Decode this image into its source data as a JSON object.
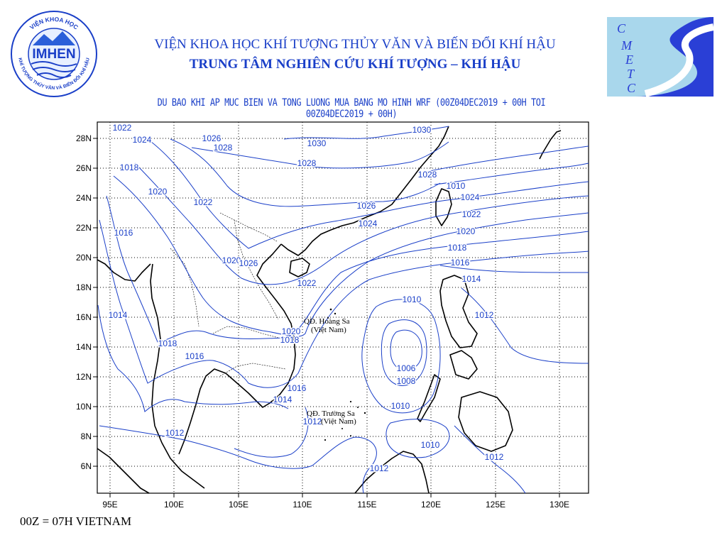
{
  "header": {
    "line1": "VIỆN KHOA HỌC KHÍ TƯỢNG THỦY VĂN VÀ BIẾN ĐỔI KHÍ HẬU",
    "line2": "TRUNG TÂM NGHIÊN CỨU KHÍ TƯỢNG – KHÍ HẬU"
  },
  "logo_left": {
    "name": "IMHEN",
    "ring_top": "VIỆN KHOA HỌC",
    "ring_bottom": "KHÍ TƯỢNG THỦY VĂN VÀ BIẾN ĐỔI KHÍ HẬU"
  },
  "logo_right": {
    "letters": [
      "C",
      "M",
      "E",
      "T",
      "C"
    ]
  },
  "map": {
    "caption": "DU BAO KHI AP MUC BIEN VA TONG LUONG MUA BANG MO HINH WRF (00Z04DEC2019 + 00H TOI 00Z04DEC2019 + 00H)",
    "lat_labels": [
      "28N",
      "26N",
      "24N",
      "22N",
      "20N",
      "18N",
      "16N",
      "14N",
      "12N",
      "10N",
      "8N",
      "6N"
    ],
    "lon_labels": [
      "95E",
      "100E",
      "105E",
      "110E",
      "115E",
      "120E",
      "125E",
      "130E"
    ],
    "islands": [
      {
        "name": "QĐ. Hoàng Sa",
        "country": "(Việt Nam)"
      },
      {
        "name": "QĐ. Trường Sa",
        "country": "(Việt Nam)"
      }
    ],
    "isobar_labels": [
      "1022",
      "1024",
      "1018",
      "1026",
      "1028",
      "1030",
      "1028",
      "1030",
      "1020",
      "1022",
      "1016",
      "1020",
      "1026",
      "1024",
      "1028",
      "1026",
      "1024",
      "1022",
      "1020",
      "1018",
      "1016",
      "1014",
      "1012",
      "1010",
      "1006",
      "1008",
      "1010",
      "1010",
      "1012",
      "1012",
      "1012",
      "1014",
      "1018",
      "1016",
      "1022",
      "1020",
      "1018",
      "1016",
      "1014",
      "1012",
      "1010"
    ],
    "colors": {
      "isobar": "#1a3fc8",
      "coast": "#000000",
      "frame": "#000000"
    }
  },
  "footer": {
    "note": "00Z = 07H VIETNAM"
  }
}
